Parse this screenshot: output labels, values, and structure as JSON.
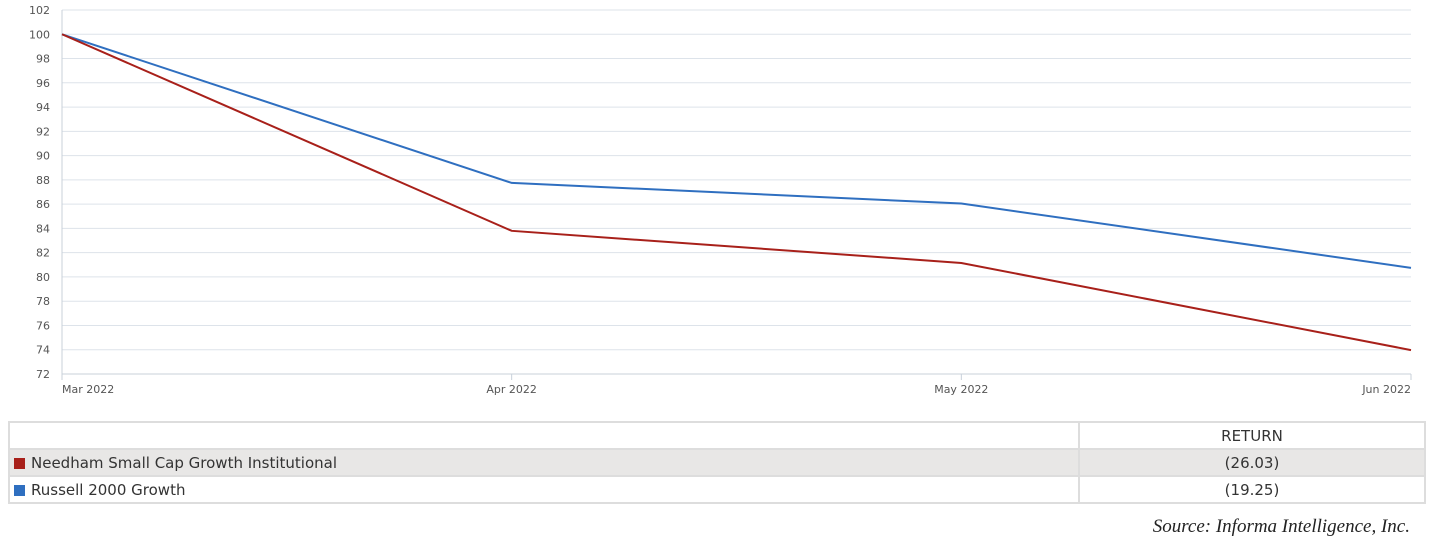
{
  "chart_data": {
    "type": "line",
    "x": [
      "Mar 2022",
      "Apr 2022",
      "May 2022",
      "Jun 2022"
    ],
    "ylim": [
      72,
      102
    ],
    "yticks": [
      72,
      74,
      76,
      78,
      80,
      82,
      84,
      86,
      88,
      90,
      92,
      94,
      96,
      98,
      100,
      102
    ],
    "grid": true,
    "series": [
      {
        "name": "Needham Small Cap Growth Institutional",
        "color": "#a8201a",
        "values": [
          100,
          83.8,
          81.15,
          73.97
        ]
      },
      {
        "name": "Russell 2000 Growth",
        "color": "#2f6fc0",
        "values": [
          100,
          87.75,
          86.05,
          80.75
        ]
      }
    ]
  },
  "table": {
    "header": "RETURN",
    "rows": [
      {
        "name": "Needham Small Cap Growth Institutional",
        "return": "(26.03)",
        "color": "#a8201a"
      },
      {
        "name": "Russell 2000 Growth",
        "return": "(19.25)",
        "color": "#2f6fc0"
      }
    ]
  },
  "source": "Source: Informa Intelligence, Inc."
}
